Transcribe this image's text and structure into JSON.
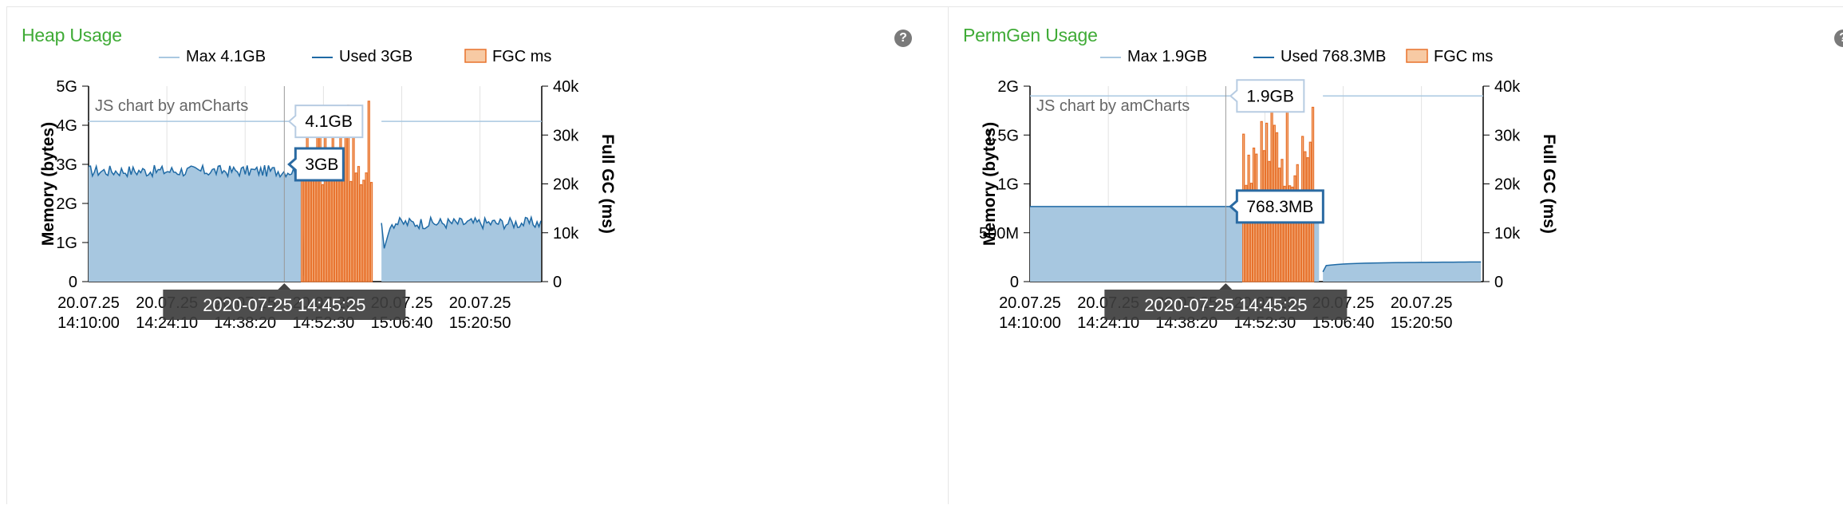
{
  "panels": [
    {
      "title": "Heap Usage",
      "help_glyph": "?",
      "help_icon": "question-circle-icon",
      "watermark": "JS chart by amCharts",
      "colors": {
        "max_line": "#a9c8e1",
        "used_line": "#1f6aa5",
        "used_fill": "#a7c7e0",
        "fgc_fill": "#f7caa4",
        "fgc_stroke": "#e8722c",
        "title": "#3fab36"
      }
    },
    {
      "title": "PermGen Usage",
      "help_glyph": "?",
      "help_icon": "question-circle-icon",
      "watermark": "JS chart by amCharts",
      "colors": {
        "max_line": "#a9c8e1",
        "used_line": "#1f6aa5",
        "used_fill": "#a7c7e0",
        "fgc_fill": "#f7caa4",
        "fgc_stroke": "#e8722c",
        "title": "#3fab36"
      }
    }
  ],
  "chart_data": [
    {
      "type": "line",
      "title": "Heap Usage",
      "ylabel": "Memory (bytes)",
      "y2label": "Full GC (ms)",
      "ylim": [
        0,
        5
      ],
      "y_unit": "GB",
      "y_ticks": [
        "0",
        "1G",
        "2G",
        "3G",
        "4G",
        "5G"
      ],
      "y2lim": [
        0,
        40000
      ],
      "y2_ticks": [
        "0",
        "10k",
        "20k",
        "30k",
        "40k"
      ],
      "x_ticks": [
        [
          "20.07.25",
          "14:10:00"
        ],
        [
          "20.07.25",
          "14:24:10"
        ],
        [
          "20.07.25",
          "14:38:20"
        ],
        [
          "20.07.25",
          "14:52:30"
        ],
        [
          "20.07.25",
          "15:06:40"
        ],
        [
          "20.07.25",
          "15:20:50"
        ]
      ],
      "x_range_minutes": [
        0,
        82
      ],
      "legend": [
        {
          "label": "Max",
          "value": "4.1GB",
          "kind": "line-light"
        },
        {
          "label": "Used",
          "value": "3GB",
          "kind": "line"
        },
        {
          "label": "FGC",
          "value": "ms",
          "kind": "box"
        }
      ],
      "series": [
        {
          "name": "Max",
          "values_at": [
            [
              0,
              4.1
            ],
            [
              36.5,
              4.1
            ]
          ],
          "segment2": [
            [
              53,
              4.1
            ],
            [
              82,
              4.1
            ]
          ]
        },
        {
          "name": "Used",
          "first_segment": {
            "x_start": 0,
            "x_end": 38.5,
            "level": 2.8,
            "amp": 0.15,
            "drop_to": 0.15
          },
          "second_segment": {
            "x_start": 53,
            "x_end": 82,
            "start_level": 1.5,
            "level": 1.5,
            "amp": 0.15
          }
        },
        {
          "name": "FGC",
          "x_start": 38.5,
          "x_end": 51.5,
          "bar_count": 28,
          "min": 18000,
          "max": 37500
        }
      ],
      "cursor": {
        "label": "2020-07-25 14:45:25",
        "x_minute": 35.42
      },
      "balloons": [
        {
          "text": "4.1GB",
          "value": 4.1,
          "series": "Max"
        },
        {
          "text": "3GB",
          "value": 3.0,
          "series": "Used"
        }
      ]
    },
    {
      "type": "line",
      "title": "PermGen Usage",
      "ylabel": "Memory (bytes)",
      "y2label": "Full GC (ms)",
      "ylim": [
        0,
        2
      ],
      "y_unit": "GB",
      "y_ticks": [
        "0",
        "500M",
        "1G",
        "1.5G",
        "2G"
      ],
      "y2lim": [
        0,
        40000
      ],
      "y2_ticks": [
        "0",
        "10k",
        "20k",
        "30k",
        "40k"
      ],
      "x_ticks": [
        [
          "20.07.25",
          "14:10:00"
        ],
        [
          "20.07.25",
          "14:24:10"
        ],
        [
          "20.07.25",
          "14:38:20"
        ],
        [
          "20.07.25",
          "14:52:30"
        ],
        [
          "20.07.25",
          "15:06:40"
        ],
        [
          "20.07.25",
          "15:20:50"
        ]
      ],
      "x_range_minutes": [
        0,
        82
      ],
      "legend": [
        {
          "label": "Max",
          "value": "1.9GB",
          "kind": "line-light"
        },
        {
          "label": "Used",
          "value": "768.3MB",
          "kind": "line"
        },
        {
          "label": "FGC",
          "value": "ms",
          "kind": "box"
        }
      ],
      "series": [
        {
          "name": "Max",
          "values_at": [
            [
              0,
              1.9
            ],
            [
              36.5,
              1.9
            ]
          ],
          "segment2": [
            [
              53,
              1.9
            ],
            [
              82,
              1.9
            ]
          ]
        },
        {
          "name": "Used",
          "flat_segment": {
            "x_start": 0,
            "x_end": 53,
            "level": 0.768
          },
          "second_segment": {
            "x_start": 53,
            "x_end": 82,
            "start_level": 0.1,
            "level": 0.19
          }
        },
        {
          "name": "FGC",
          "x_start": 38.5,
          "x_end": 51.5,
          "bar_count": 28,
          "min": 18000,
          "max": 37500
        }
      ],
      "cursor": {
        "label": "2020-07-25 14:45:25",
        "x_minute": 35.42
      },
      "balloons": [
        {
          "text": "1.9GB",
          "value": 1.9,
          "series": "Max"
        },
        {
          "text": "768.3MB",
          "value": 0.768,
          "series": "Used"
        }
      ]
    }
  ]
}
